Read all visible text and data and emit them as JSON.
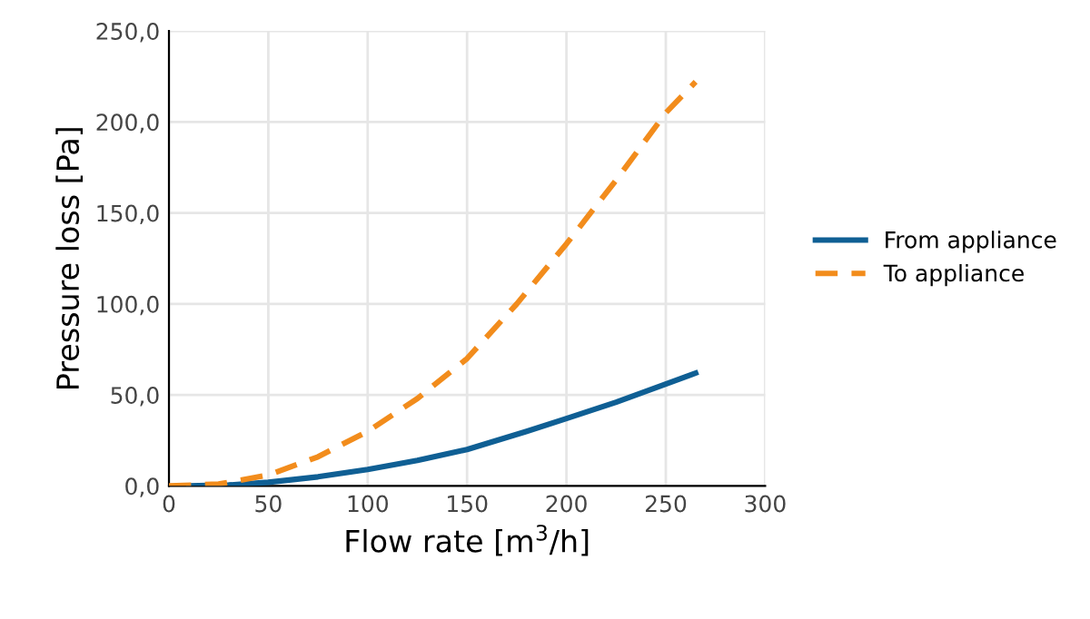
{
  "chart_data": {
    "type": "line",
    "xlabel": "Flow rate [m$^{3}$/h]",
    "ylabel": "Pressure loss [Pa]",
    "xlim": [
      0,
      300
    ],
    "xticks": [
      0,
      50,
      100,
      150,
      200,
      250,
      300
    ],
    "ylim": [
      0,
      250
    ],
    "yticks": [
      {
        "value": 0,
        "label": "0,0"
      },
      {
        "value": 50,
        "label": "50,0"
      },
      {
        "value": 100,
        "label": "100,0"
      },
      {
        "value": 150,
        "label": "150,0"
      },
      {
        "value": 200,
        "label": "200,0"
      },
      {
        "value": 250,
        "label": "250,0"
      }
    ],
    "grid": true,
    "legend": "right",
    "series": [
      {
        "name": "From appliance",
        "color": "#0f5f94",
        "line_style": "solid",
        "x": [
          10,
          30,
          50,
          75,
          100,
          125,
          150,
          165,
          180,
          200,
          225,
          250,
          265
        ],
        "values": [
          0,
          0.5,
          2,
          5,
          9,
          14,
          20,
          25,
          30,
          37,
          46,
          56,
          62
        ]
      },
      {
        "name": "To appliance",
        "color": "#f28c1c",
        "line_style": "dashed",
        "x": [
          0,
          25,
          50,
          75,
          100,
          125,
          150,
          175,
          200,
          225,
          250,
          265
        ],
        "values": [
          0,
          1,
          6,
          16,
          30,
          48,
          70,
          100,
          133,
          168,
          205,
          222
        ]
      }
    ]
  }
}
